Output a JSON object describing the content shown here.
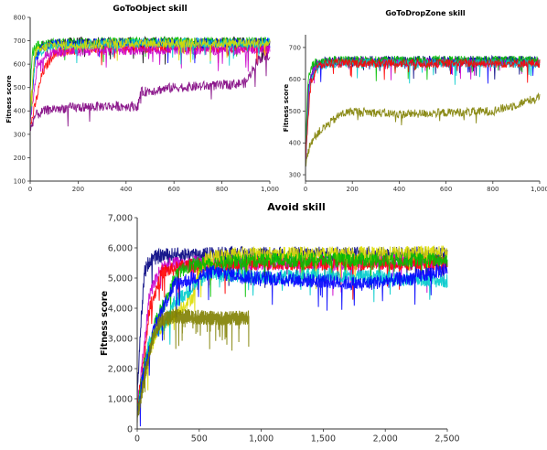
{
  "chart_data": [
    {
      "type": "line",
      "title": "GoToObject skill",
      "xlabel": "",
      "ylabel": "Fitness score",
      "xlim": [
        0,
        1000
      ],
      "ylim": [
        100,
        800
      ],
      "xticks": [
        0,
        200,
        400,
        600,
        800,
        1000
      ],
      "xtick_labels": [
        "0",
        "200",
        "400",
        "600",
        "800",
        "1,000"
      ],
      "yticks": [
        100,
        200,
        300,
        400,
        500,
        600,
        700,
        800
      ],
      "ytick_labels": [
        "100",
        "200",
        "300",
        "400",
        "500",
        "600",
        "700",
        "800"
      ],
      "grid": false,
      "series": [
        {
          "color": "#000000",
          "x": [
            0,
            20,
            50,
            100,
            200,
            400,
            600,
            800,
            1000
          ],
          "values": [
            350,
            640,
            680,
            690,
            695,
            695,
            695,
            695,
            695
          ]
        },
        {
          "color": "#ff0000",
          "x": [
            0,
            20,
            50,
            100,
            200,
            400,
            600,
            800,
            1000
          ],
          "values": [
            330,
            420,
            560,
            650,
            665,
            670,
            670,
            670,
            670
          ]
        },
        {
          "color": "#00c000",
          "x": [
            0,
            10,
            30,
            100,
            400,
            1000
          ],
          "values": [
            500,
            650,
            680,
            690,
            695,
            695
          ]
        },
        {
          "color": "#0000ff",
          "x": [
            0,
            20,
            50,
            100,
            400,
            1000
          ],
          "values": [
            360,
            620,
            670,
            685,
            690,
            690
          ]
        },
        {
          "color": "#cc00cc",
          "x": [
            0,
            30,
            80,
            200,
            400,
            600,
            800,
            1000
          ],
          "values": [
            340,
            600,
            650,
            655,
            660,
            660,
            660,
            665
          ]
        },
        {
          "color": "#00cccc",
          "x": [
            0,
            20,
            80,
            400,
            1000
          ],
          "values": [
            380,
            640,
            680,
            690,
            690
          ]
        },
        {
          "color": "#dddd00",
          "x": [
            0,
            20,
            80,
            400,
            1000
          ],
          "values": [
            400,
            650,
            680,
            690,
            690
          ]
        },
        {
          "color": "#800080",
          "x": [
            0,
            20,
            60,
            100,
            200,
            300,
            400,
            450,
            460,
            600,
            800,
            900,
            950,
            1000
          ],
          "values": [
            320,
            380,
            400,
            410,
            415,
            420,
            420,
            420,
            480,
            500,
            510,
            520,
            620,
            640
          ]
        }
      ]
    },
    {
      "type": "line",
      "title": "GoToDropZone skill",
      "xlabel": "",
      "ylabel": "Fitness score",
      "xlim": [
        0,
        1000
      ],
      "ylim": [
        280,
        740
      ],
      "xticks": [
        0,
        200,
        400,
        600,
        800,
        1000
      ],
      "xtick_labels": [
        "0",
        "200",
        "400",
        "600",
        "800",
        "1,000"
      ],
      "yticks": [
        300,
        400,
        500,
        600,
        700
      ],
      "ytick_labels": [
        "300",
        "400",
        "500",
        "600",
        "700"
      ],
      "grid": false,
      "series": [
        {
          "color": "#000080",
          "x": [
            0,
            10,
            30,
            60,
            200,
            600,
            1000
          ],
          "values": [
            330,
            560,
            640,
            655,
            660,
            660,
            660
          ]
        },
        {
          "color": "#0000ff",
          "x": [
            0,
            15,
            40,
            100,
            1000
          ],
          "values": [
            320,
            580,
            640,
            655,
            655
          ]
        },
        {
          "color": "#cc00cc",
          "x": [
            0,
            15,
            40,
            100,
            1000
          ],
          "values": [
            340,
            590,
            645,
            655,
            655
          ]
        },
        {
          "color": "#00c000",
          "x": [
            0,
            10,
            30,
            100,
            1000
          ],
          "values": [
            360,
            600,
            650,
            660,
            660
          ]
        },
        {
          "color": "#00cccc",
          "x": [
            0,
            20,
            50,
            100,
            1000
          ],
          "values": [
            350,
            590,
            640,
            650,
            650
          ]
        },
        {
          "color": "#ff0000",
          "x": [
            0,
            20,
            50,
            100,
            1000
          ],
          "values": [
            340,
            580,
            640,
            650,
            650
          ]
        },
        {
          "color": "#808000",
          "x": [
            0,
            20,
            50,
            100,
            150,
            200,
            400,
            600,
            800,
            900,
            1000
          ],
          "values": [
            330,
            400,
            430,
            460,
            490,
            500,
            490,
            495,
            500,
            520,
            545
          ]
        }
      ]
    },
    {
      "type": "line",
      "title": "Avoid skill",
      "xlabel": "",
      "ylabel": "Fitness score",
      "xlim": [
        0,
        2500
      ],
      "ylim": [
        0,
        7000
      ],
      "xticks": [
        0,
        500,
        1000,
        1500,
        2000,
        2500
      ],
      "xtick_labels": [
        "0",
        "500",
        "1,000",
        "1,500",
        "2,000",
        "2,500"
      ],
      "yticks": [
        0,
        1000,
        2000,
        3000,
        4000,
        5000,
        6000,
        7000
      ],
      "ytick_labels": [
        "0",
        "1,000",
        "2,000",
        "3,000",
        "4,000",
        "5,000",
        "6,000",
        "7,000"
      ],
      "grid": false,
      "series": [
        {
          "color": "#000080",
          "x": [
            0,
            30,
            60,
            100,
            200,
            500,
            1000,
            1500,
            2000,
            2500
          ],
          "values": [
            1000,
            3500,
            5200,
            5600,
            5750,
            5800,
            5800,
            5800,
            5800,
            5800
          ]
        },
        {
          "color": "#cc00cc",
          "x": [
            0,
            50,
            100,
            200,
            400,
            1000,
            1500,
            2000,
            2500
          ],
          "values": [
            700,
            2500,
            4500,
            5400,
            5500,
            5500,
            5500,
            5550,
            5550
          ]
        },
        {
          "color": "#ff0000",
          "x": [
            0,
            50,
            100,
            200,
            400,
            1000,
            2500
          ],
          "values": [
            600,
            2200,
            4000,
            5200,
            5400,
            5500,
            5500
          ]
        },
        {
          "color": "#dddd00",
          "x": [
            0,
            50,
            150,
            300,
            450,
            500,
            550,
            600,
            800,
            1000,
            1500,
            2000,
            2500
          ],
          "values": [
            500,
            1800,
            3200,
            3800,
            4400,
            5200,
            5600,
            5700,
            5800,
            5800,
            5800,
            5800,
            5850
          ]
        },
        {
          "color": "#00c000",
          "x": [
            0,
            50,
            150,
            250,
            300,
            400,
            600,
            1000,
            2500
          ],
          "values": [
            600,
            2000,
            3600,
            4400,
            5000,
            5400,
            5500,
            5600,
            5600
          ]
        },
        {
          "color": "#00cccc",
          "x": [
            0,
            50,
            100,
            150,
            200,
            300,
            600,
            1000,
            1500,
            2000,
            2500
          ],
          "values": [
            600,
            1800,
            3000,
            3300,
            3300,
            4200,
            5200,
            5000,
            5100,
            5000,
            4900
          ]
        },
        {
          "color": "#0000ff",
          "x": [
            0,
            50,
            150,
            300,
            600,
            1000,
            1500,
            1800,
            2000,
            2200,
            2500
          ],
          "values": [
            500,
            1800,
            3500,
            4800,
            5200,
            5000,
            4900,
            4800,
            4900,
            5000,
            5300
          ]
        },
        {
          "color": "#808000",
          "x": [
            0,
            50,
            100,
            150,
            200,
            300,
            500,
            700,
            900
          ],
          "values": [
            400,
            1500,
            2600,
            3300,
            3600,
            3750,
            3700,
            3650,
            3700
          ]
        }
      ]
    }
  ]
}
